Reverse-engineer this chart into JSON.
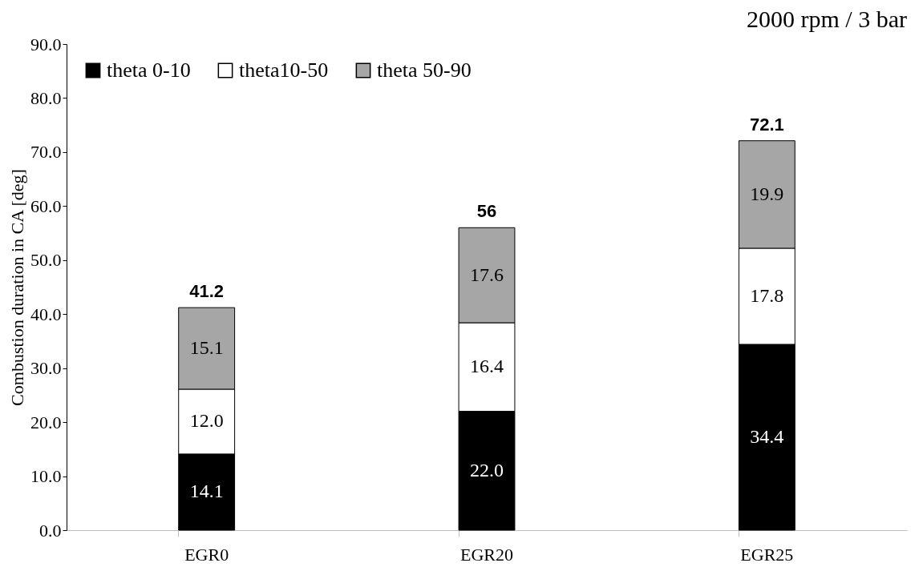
{
  "chart_data": {
    "type": "bar",
    "title": "2000 rpm / 3 bar",
    "ylabel": "Combustion duration in CA [deg]",
    "categories": [
      "EGR0",
      "EGR20",
      "EGR25"
    ],
    "stacked": true,
    "series": [
      {
        "name": "theta 0-10",
        "color": "#000000",
        "values": [
          14.1,
          22.0,
          34.4
        ],
        "value_labels": [
          "14.1",
          "22.0",
          "34.4"
        ]
      },
      {
        "name": "theta10-50",
        "color": "#ffffff",
        "values": [
          12.0,
          16.4,
          17.8
        ],
        "value_labels": [
          "12.0",
          "16.4",
          "17.8"
        ]
      },
      {
        "name": "theta 50-90",
        "color": "#a6a6a6",
        "values": [
          15.1,
          17.6,
          19.9
        ],
        "value_labels": [
          "15.1",
          "17.6",
          "19.9"
        ]
      }
    ],
    "totals": [
      "41.2",
      "56",
      "72.1"
    ],
    "ylim": [
      0,
      90
    ],
    "yticks": [
      {
        "value": 0,
        "label": "0.0"
      },
      {
        "value": 10,
        "label": "10.0"
      },
      {
        "value": 20,
        "label": "20.0"
      },
      {
        "value": 30,
        "label": "30.0"
      },
      {
        "value": 40,
        "label": "40.0"
      },
      {
        "value": 50,
        "label": "50.0"
      },
      {
        "value": 60,
        "label": "60.0"
      },
      {
        "value": 70,
        "label": "70.0"
      },
      {
        "value": 80,
        "label": "80.0"
      },
      {
        "value": 90,
        "label": "90.0"
      }
    ],
    "grid": false,
    "legend": "top left"
  }
}
